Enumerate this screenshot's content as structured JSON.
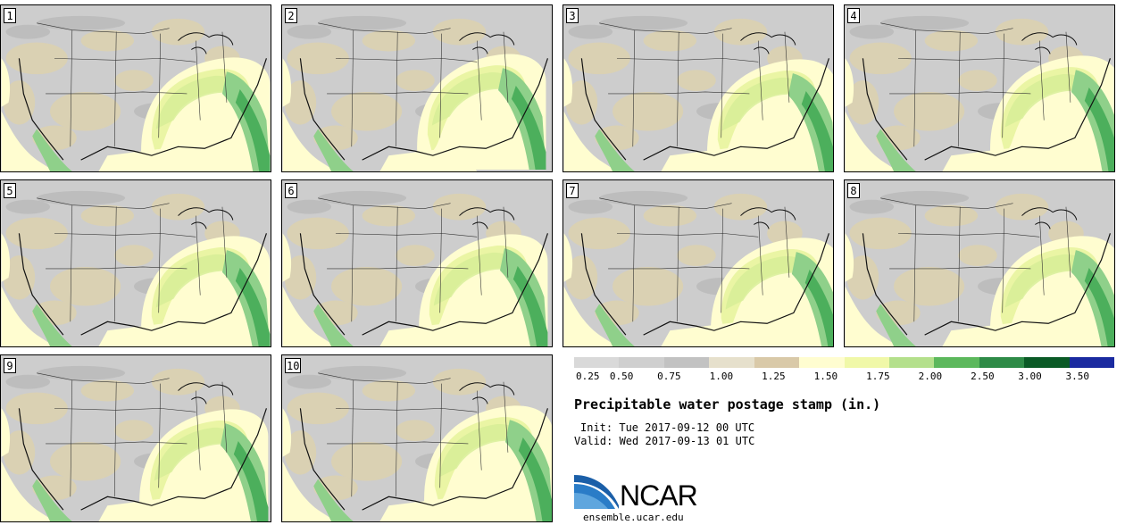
{
  "panels": [
    {
      "label": "1"
    },
    {
      "label": "2"
    },
    {
      "label": "3"
    },
    {
      "label": "4"
    },
    {
      "label": "5"
    },
    {
      "label": "6"
    },
    {
      "label": "7"
    },
    {
      "label": "8"
    },
    {
      "label": "9"
    },
    {
      "label": "10"
    }
  ],
  "colorbar": {
    "colors": [
      "#d9d9d9",
      "#cfcfcf",
      "#c2c2c2",
      "#e6e0cc",
      "#d9c9a8",
      "#fffdd0",
      "#f0f8a8",
      "#b4e08c",
      "#5cb85c",
      "#2e8b47",
      "#117532",
      "#0a5a26",
      "#1a2aa0"
    ],
    "labels": [
      "0.25",
      "0.50",
      "0.75",
      "1.00",
      "1.25",
      "1.50",
      "1.75",
      "2.00",
      "2.50",
      "3.00",
      "3.50"
    ]
  },
  "title": "Precipitable water postage stamp (in.)",
  "init": "Init: Tue 2017-09-12 00 UTC",
  "valid": "Valid: Wed 2017-09-13 01 UTC",
  "logo": {
    "text": "NCAR",
    "url": "ensemble.ucar.edu"
  }
}
